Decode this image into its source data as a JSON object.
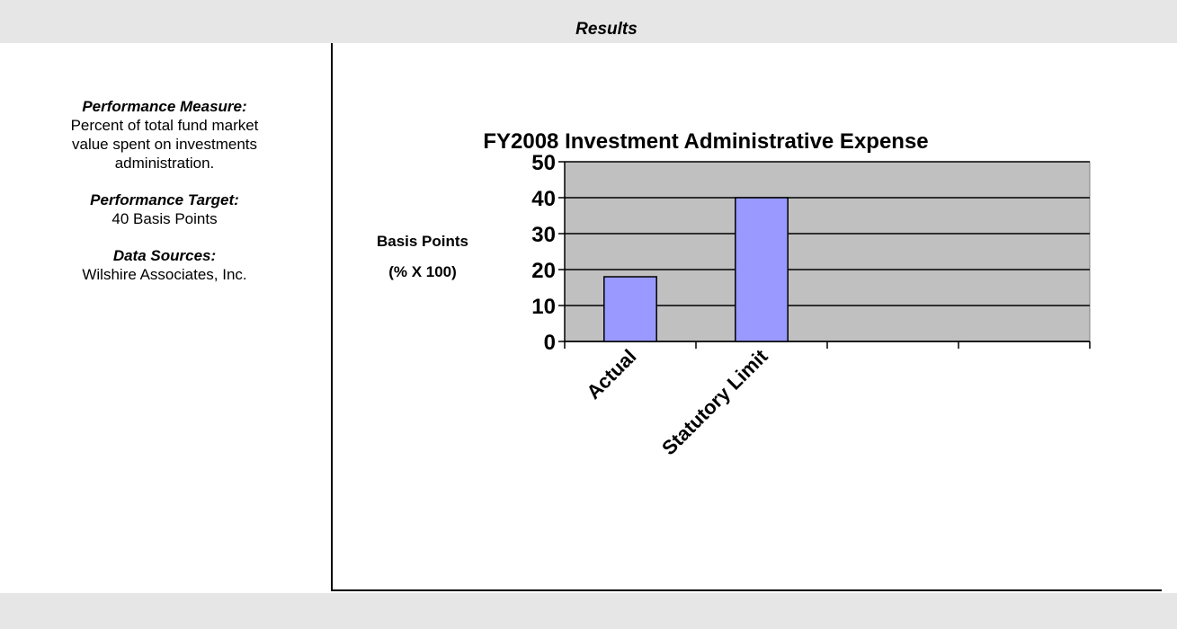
{
  "header": {
    "title": "Results"
  },
  "sidebar": [
    {
      "heading": "Performance Measure:",
      "lines": [
        "Percent of total fund market",
        "value spent on investments",
        "administration."
      ]
    },
    {
      "heading": "Performance Target:",
      "lines": [
        "40 Basis Points"
      ]
    },
    {
      "heading": "Data Sources:",
      "lines": [
        "Wilshire Associates, Inc."
      ]
    }
  ],
  "chart_data": {
    "type": "bar",
    "title": "FY2008 Investment Administrative Expense",
    "y_label": [
      "Basis Points",
      "(% X 100)"
    ],
    "categories": [
      "Actual",
      "Statutory Limit",
      null,
      null
    ],
    "values": [
      18,
      40,
      null,
      null
    ],
    "color": "#9999ff",
    "plot_background": "#c0c0c0",
    "ylim": [
      0,
      50
    ],
    "yticks": [
      0,
      10,
      20,
      30,
      40,
      50
    ],
    "grid": true
  }
}
